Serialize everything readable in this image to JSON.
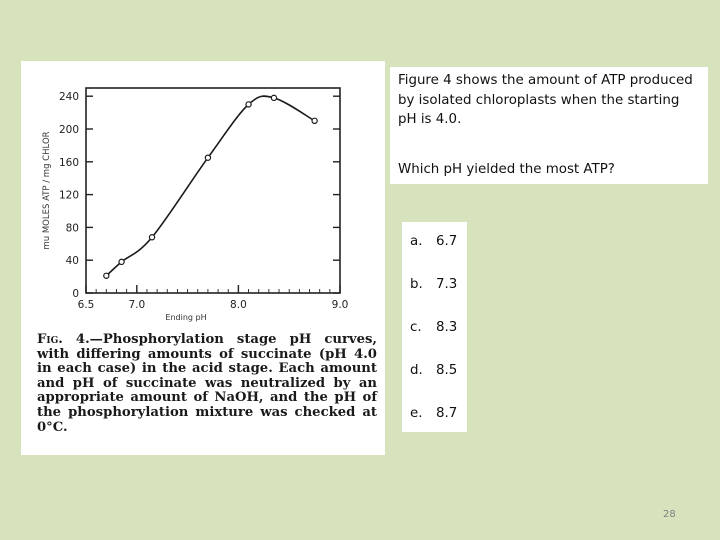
{
  "figure": {
    "chart_data": {
      "type": "line",
      "xlabel": "Ending pH",
      "ylabel": "mu MOLES ATP / mg CHLOR",
      "xlim": [
        6.5,
        9.0
      ],
      "ylim": [
        0,
        250
      ],
      "x_ticks": [
        "6.5",
        "7.0",
        "8.0",
        "9.0"
      ],
      "x_tick_values": [
        6.5,
        7.0,
        8.0,
        9.0
      ],
      "y_ticks": [
        "0",
        "40",
        "80",
        "120",
        "160",
        "200",
        "240"
      ],
      "y_tick_values": [
        0,
        40,
        80,
        120,
        160,
        200,
        240
      ],
      "series": [
        {
          "x": [
            6.7,
            6.85,
            7.15,
            7.7,
            8.1,
            8.35,
            8.75
          ],
          "y": [
            21,
            38,
            68,
            165,
            230,
            238,
            210
          ]
        }
      ]
    },
    "caption_label": "Fig. 4.",
    "caption_text": "—Phosphorylation stage pH curves, with differing amounts of succinate (pH 4.0 in each case) in the acid stage. Each amount and pH of succinate was neutralized by an appropriate amount of NaOH, and the pH of the phosphorylation mixture was checked at 0°C."
  },
  "question": {
    "intro": "Figure 4 shows the amount of ATP produced by isolated chloroplasts when the starting pH is 4.0.",
    "prompt": "Which pH yielded the most ATP?"
  },
  "answers": [
    {
      "letter": "a.",
      "value": "6.7"
    },
    {
      "letter": "b.",
      "value": "7.3"
    },
    {
      "letter": "c.",
      "value": "8.3"
    },
    {
      "letter": "d.",
      "value": "8.5"
    },
    {
      "letter": "e.",
      "value": "8.7"
    }
  ],
  "slide_number": "28"
}
